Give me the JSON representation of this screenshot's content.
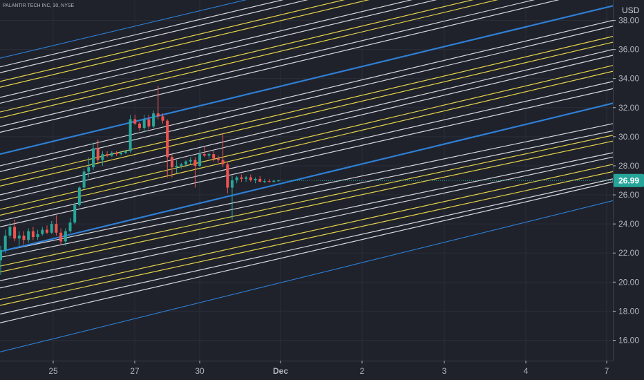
{
  "chart_data": {
    "type": "candlestick",
    "title": "PALANTIR TECH INC, 30, NYSE",
    "currency": "USD",
    "last_price": "26.99",
    "ylim": [
      14.6,
      39.4
    ],
    "y_ticks": [
      "16.00",
      "18.00",
      "20.00",
      "22.00",
      "24.00",
      "26.00",
      "28.00",
      "30.00",
      "32.00",
      "34.00",
      "36.00",
      "38.00"
    ],
    "x_ticks": [
      "25",
      "27",
      "30",
      "Dec",
      "2",
      "3",
      "4",
      "7"
    ],
    "grid": true,
    "colors": {
      "background": "#1f222b",
      "up": "#26a69a",
      "down": "#ef5350",
      "last_price": "#26a69a",
      "channel_blue": "#2f7fd6",
      "channel_yellow": "#e6d44a",
      "channel_white": "#d6d8dd"
    },
    "candles": [
      [
        21.5,
        22.5,
        20.5,
        22.2
      ],
      [
        22.2,
        23.6,
        22.0,
        23.2
      ],
      [
        23.2,
        24.1,
        23.0,
        23.8
      ],
      [
        23.8,
        24.3,
        22.8,
        23.0
      ],
      [
        23.0,
        23.5,
        22.5,
        23.2
      ],
      [
        23.2,
        23.5,
        22.6,
        22.9
      ],
      [
        22.9,
        23.7,
        22.7,
        23.5
      ],
      [
        23.5,
        23.8,
        22.9,
        23.1
      ],
      [
        23.1,
        23.6,
        22.9,
        23.3
      ],
      [
        23.3,
        23.8,
        23.2,
        23.6
      ],
      [
        23.6,
        23.9,
        23.3,
        23.4
      ],
      [
        23.4,
        24.2,
        23.3,
        24.0
      ],
      [
        24.0,
        24.6,
        23.2,
        23.4
      ],
      [
        23.4,
        23.7,
        22.6,
        22.8
      ],
      [
        22.8,
        23.7,
        22.5,
        23.5
      ],
      [
        23.5,
        24.4,
        23.4,
        24.1
      ],
      [
        24.1,
        25.5,
        24.0,
        25.3
      ],
      [
        25.3,
        26.6,
        25.2,
        26.5
      ],
      [
        26.5,
        27.8,
        26.4,
        27.6
      ],
      [
        27.6,
        28.6,
        27.2,
        27.9
      ],
      [
        27.9,
        29.6,
        27.7,
        29.2
      ],
      [
        29.2,
        29.8,
        28.2,
        28.4
      ],
      [
        28.4,
        29.0,
        28.0,
        28.8
      ],
      [
        28.8,
        29.0,
        28.6,
        28.7
      ],
      [
        28.7,
        29.0,
        28.6,
        28.9
      ],
      [
        28.9,
        29.0,
        28.7,
        28.8
      ],
      [
        28.8,
        29.0,
        28.7,
        28.9
      ],
      [
        28.9,
        29.1,
        28.8,
        29.0
      ],
      [
        29.0,
        31.5,
        28.9,
        31.2
      ],
      [
        31.2,
        31.5,
        30.8,
        30.9
      ],
      [
        30.9,
        31.0,
        30.4,
        30.6
      ],
      [
        30.6,
        31.5,
        30.3,
        31.2
      ],
      [
        31.2,
        31.5,
        30.5,
        30.7
      ],
      [
        30.7,
        31.8,
        30.6,
        31.6
      ],
      [
        31.6,
        33.5,
        31.2,
        31.4
      ],
      [
        31.4,
        31.6,
        30.9,
        31.1
      ],
      [
        31.1,
        31.2,
        27.2,
        28.6
      ],
      [
        28.6,
        28.8,
        27.2,
        27.9
      ],
      [
        27.9,
        28.4,
        27.5,
        28.0
      ],
      [
        28.0,
        28.2,
        27.8,
        28.1
      ],
      [
        28.1,
        28.4,
        27.9,
        28.3
      ],
      [
        28.3,
        28.6,
        28.1,
        28.4
      ],
      [
        28.4,
        28.6,
        26.5,
        28.0
      ],
      [
        28.0,
        29.1,
        27.9,
        28.8
      ],
      [
        28.8,
        29.3,
        28.6,
        28.7
      ],
      [
        28.7,
        28.9,
        28.5,
        28.8
      ],
      [
        28.8,
        29.0,
        28.3,
        28.5
      ],
      [
        28.5,
        28.7,
        28.2,
        28.4
      ],
      [
        28.4,
        30.2,
        27.9,
        28.1
      ],
      [
        28.1,
        28.3,
        26.1,
        26.5
      ],
      [
        26.5,
        27.3,
        24.3,
        27.0
      ],
      [
        27.0,
        27.3,
        26.8,
        27.2
      ],
      [
        27.2,
        27.4,
        26.9,
        27.1
      ],
      [
        27.1,
        27.3,
        26.9,
        27.2
      ],
      [
        27.2,
        27.4,
        26.9,
        27.0
      ],
      [
        27.0,
        27.2,
        26.8,
        27.1
      ],
      [
        27.1,
        27.3,
        26.9,
        26.9
      ],
      [
        26.9,
        27.1,
        26.8,
        26.95
      ],
      [
        26.95,
        27.1,
        26.85,
        26.9
      ],
      [
        26.9,
        27.05,
        26.85,
        26.97
      ],
      [
        26.97,
        27.05,
        26.9,
        26.99
      ]
    ],
    "channel_lines": [
      {
        "color": "blue",
        "start": 15.2,
        "end": 25.6,
        "width": 1.1
      },
      {
        "color": "white",
        "start": 17.2,
        "end": 26.9
      },
      {
        "color": "white",
        "start": 17.8,
        "end": 27.1
      },
      {
        "color": "yellow",
        "start": 18.4,
        "end": 27.6
      },
      {
        "color": "yellow",
        "start": 18.8,
        "end": 28.1
      },
      {
        "color": "white",
        "start": 19.6,
        "end": 28.6
      },
      {
        "color": "white",
        "start": 20.1,
        "end": 28.9
      },
      {
        "color": "yellow",
        "start": 20.7,
        "end": 29.7
      },
      {
        "color": "yellow",
        "start": 21.1,
        "end": 30.1
      },
      {
        "color": "white",
        "start": 21.7,
        "end": 30.4
      },
      {
        "color": "white",
        "start": 22.1,
        "end": 30.9
      },
      {
        "color": "blue",
        "start": 22.1,
        "end": 32.3,
        "width": 2.2
      },
      {
        "color": "white",
        "start": 23.8,
        "end": 33.3
      },
      {
        "color": "white",
        "start": 24.2,
        "end": 33.8
      },
      {
        "color": "yellow",
        "start": 24.6,
        "end": 34.5
      },
      {
        "color": "yellow",
        "start": 25.0,
        "end": 34.9
      },
      {
        "color": "white",
        "start": 25.6,
        "end": 35.6
      },
      {
        "color": "white",
        "start": 26.0,
        "end": 36.0
      },
      {
        "color": "yellow",
        "start": 26.6,
        "end": 36.5
      },
      {
        "color": "yellow",
        "start": 27.0,
        "end": 36.9
      },
      {
        "color": "white",
        "start": 27.6,
        "end": 37.6
      },
      {
        "color": "white",
        "start": 28.0,
        "end": 38.0
      },
      {
        "color": "blue",
        "start": 28.8,
        "end": 39.0,
        "width": 2.2
      },
      {
        "color": "white",
        "start": 30.3,
        "end": 40.3
      },
      {
        "color": "white",
        "start": 30.7,
        "end": 40.7
      },
      {
        "color": "yellow",
        "start": 31.3,
        "end": 41.3
      },
      {
        "color": "yellow",
        "start": 31.7,
        "end": 41.7
      },
      {
        "color": "white",
        "start": 32.3,
        "end": 42.3
      },
      {
        "color": "white",
        "start": 32.7,
        "end": 42.7
      },
      {
        "color": "yellow",
        "start": 33.4,
        "end": 43.4
      },
      {
        "color": "yellow",
        "start": 33.8,
        "end": 43.8
      },
      {
        "color": "white",
        "start": 34.4,
        "end": 44.4
      },
      {
        "color": "white",
        "start": 34.8,
        "end": 44.8
      },
      {
        "color": "blue",
        "start": 35.4,
        "end": 45.4,
        "width": 1.1
      }
    ]
  }
}
